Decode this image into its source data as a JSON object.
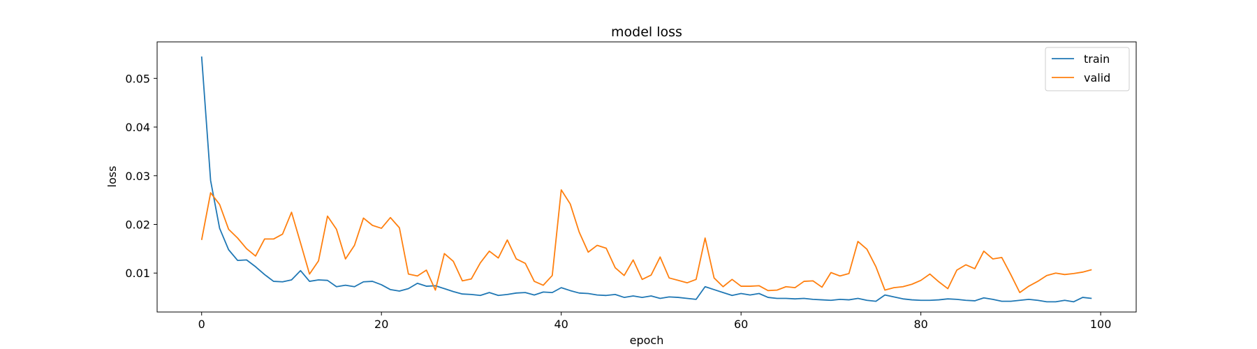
{
  "chart_data": {
    "type": "line",
    "title": "model loss",
    "xlabel": "epoch",
    "ylabel": "loss",
    "xlim": [
      -4.95,
      103.95
    ],
    "ylim": [
      0.002,
      0.0575
    ],
    "xticks": [
      0,
      20,
      40,
      60,
      80,
      100
    ],
    "yticks": [
      0.01,
      0.02,
      0.03,
      0.04,
      0.05
    ],
    "ytick_labels": [
      "0.01",
      "0.02",
      "0.03",
      "0.04",
      "0.05"
    ],
    "grid": false,
    "legend_position": "top-right",
    "x": [
      0,
      1,
      2,
      3,
      4,
      5,
      6,
      7,
      8,
      9,
      10,
      11,
      12,
      13,
      14,
      15,
      16,
      17,
      18,
      19,
      20,
      21,
      22,
      23,
      24,
      25,
      26,
      27,
      28,
      29,
      30,
      31,
      32,
      33,
      34,
      35,
      36,
      37,
      38,
      39,
      40,
      41,
      42,
      43,
      44,
      45,
      46,
      47,
      48,
      49,
      50,
      51,
      52,
      53,
      54,
      55,
      56,
      57,
      58,
      59,
      60,
      61,
      62,
      63,
      64,
      65,
      66,
      67,
      68,
      69,
      70,
      71,
      72,
      73,
      74,
      75,
      76,
      77,
      78,
      79,
      80,
      81,
      82,
      83,
      84,
      85,
      86,
      87,
      88,
      89,
      90,
      91,
      92,
      93,
      94,
      95,
      96,
      97,
      98,
      99
    ],
    "series": [
      {
        "name": "train",
        "color": "#1f77b4",
        "values": [
          0.0545,
          0.029,
          0.0192,
          0.0148,
          0.0126,
          0.0127,
          0.0113,
          0.0097,
          0.0083,
          0.0082,
          0.0086,
          0.0105,
          0.0083,
          0.0086,
          0.0085,
          0.0072,
          0.0075,
          0.0072,
          0.0082,
          0.0083,
          0.0076,
          0.0066,
          0.0063,
          0.0068,
          0.0079,
          0.0073,
          0.0074,
          0.0068,
          0.0062,
          0.0057,
          0.0056,
          0.0054,
          0.006,
          0.0054,
          0.0056,
          0.0059,
          0.006,
          0.0055,
          0.0061,
          0.006,
          0.007,
          0.0064,
          0.0059,
          0.0058,
          0.0055,
          0.0054,
          0.0056,
          0.005,
          0.0053,
          0.005,
          0.0053,
          0.0048,
          0.0051,
          0.005,
          0.0048,
          0.0046,
          0.0072,
          0.0066,
          0.006,
          0.0054,
          0.0058,
          0.0055,
          0.0058,
          0.005,
          0.0048,
          0.0048,
          0.0047,
          0.0048,
          0.0046,
          0.0045,
          0.0044,
          0.0046,
          0.0045,
          0.0048,
          0.0044,
          0.0042,
          0.0055,
          0.0051,
          0.0047,
          0.0045,
          0.0044,
          0.0044,
          0.0045,
          0.0047,
          0.0046,
          0.0044,
          0.0043,
          0.0049,
          0.0046,
          0.0042,
          0.0042,
          0.0044,
          0.0046,
          0.0044,
          0.0041,
          0.0041,
          0.0044,
          0.0041,
          0.005,
          0.0048
        ]
      },
      {
        "name": "valid",
        "color": "#ff7f0e",
        "values": [
          0.0168,
          0.0265,
          0.0241,
          0.019,
          0.0172,
          0.015,
          0.0135,
          0.017,
          0.017,
          0.018,
          0.0225,
          0.0162,
          0.0098,
          0.0125,
          0.0217,
          0.019,
          0.0129,
          0.0157,
          0.0213,
          0.0198,
          0.0192,
          0.0214,
          0.0193,
          0.0098,
          0.0094,
          0.0106,
          0.0065,
          0.014,
          0.0124,
          0.0084,
          0.0088,
          0.0121,
          0.0145,
          0.0131,
          0.0168,
          0.0129,
          0.012,
          0.0083,
          0.0075,
          0.0095,
          0.0271,
          0.0242,
          0.0184,
          0.0143,
          0.0157,
          0.0151,
          0.0111,
          0.0095,
          0.0127,
          0.0087,
          0.0096,
          0.0133,
          0.009,
          0.0085,
          0.008,
          0.0087,
          0.0172,
          0.009,
          0.0072,
          0.0087,
          0.0073,
          0.0073,
          0.0074,
          0.0064,
          0.0065,
          0.0072,
          0.007,
          0.0083,
          0.0084,
          0.0071,
          0.0101,
          0.0094,
          0.0099,
          0.0165,
          0.0149,
          0.0113,
          0.0065,
          0.007,
          0.0072,
          0.0077,
          0.0085,
          0.0098,
          0.0082,
          0.0068,
          0.0106,
          0.0117,
          0.0109,
          0.0145,
          0.0129,
          0.0132,
          0.0097,
          0.006,
          0.0073,
          0.0083,
          0.0095,
          0.01,
          0.0097,
          0.0099,
          0.0102,
          0.0107
        ]
      }
    ]
  }
}
